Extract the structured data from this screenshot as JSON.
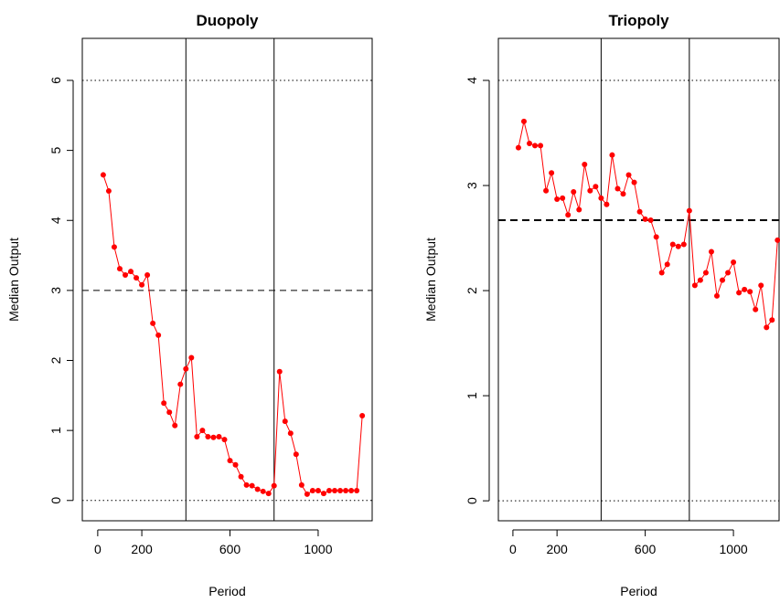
{
  "chart_data": [
    {
      "type": "line",
      "title": "Duopoly",
      "x_label": "Period",
      "y_label": "Median Output",
      "x": [
        25,
        50,
        75,
        100,
        125,
        150,
        175,
        200,
        225,
        250,
        275,
        300,
        325,
        350,
        375,
        400,
        425,
        450,
        475,
        500,
        525,
        550,
        575,
        600,
        625,
        650,
        675,
        700,
        725,
        750,
        775,
        800,
        825,
        850,
        875,
        900,
        925,
        950,
        975,
        1000,
        1025,
        1050,
        1075,
        1100,
        1125,
        1150,
        1175,
        1200
      ],
      "series": [
        {
          "color": "#ff0000",
          "values": [
            4.65,
            4.42,
            3.62,
            3.31,
            3.22,
            3.27,
            3.18,
            3.08,
            3.22,
            2.53,
            2.36,
            1.39,
            1.26,
            1.07,
            1.66,
            1.88,
            2.04,
            0.91,
            1.0,
            0.91,
            0.9,
            0.91,
            0.87,
            0.57,
            0.51,
            0.34,
            0.22,
            0.21,
            0.16,
            0.13,
            0.1,
            0.21,
            1.84,
            1.13,
            0.96,
            0.66,
            0.22,
            0.09,
            0.14,
            0.14,
            0.1,
            0.14,
            0.14,
            0.14,
            0.14,
            0.14,
            0.14,
            1.21
          ]
        }
      ],
      "xlim": [
        -70,
        1245
      ],
      "ylim": [
        -0.29,
        6.6
      ],
      "xticks": [
        0,
        200,
        600,
        1000
      ],
      "yticks": [
        0,
        1,
        2,
        3,
        4,
        5,
        6
      ],
      "hlines": [
        {
          "value": 0,
          "style": "dotted"
        },
        {
          "value": 6,
          "style": "dotted"
        },
        {
          "value": 3,
          "style": "dashed"
        }
      ],
      "vlines": [
        400,
        800
      ]
    },
    {
      "type": "line",
      "title": "Triopoly",
      "x_label": "Period",
      "y_label": "Median Output",
      "x": [
        25,
        50,
        75,
        100,
        125,
        150,
        175,
        200,
        225,
        250,
        275,
        300,
        325,
        350,
        375,
        400,
        425,
        450,
        475,
        500,
        525,
        550,
        575,
        600,
        625,
        650,
        675,
        700,
        725,
        750,
        775,
        800,
        825,
        850,
        875,
        900,
        925,
        950,
        975,
        1000,
        1025,
        1050,
        1075,
        1100,
        1125,
        1150,
        1175,
        1200
      ],
      "series": [
        {
          "color": "#ff0000",
          "values": [
            3.36,
            3.61,
            3.4,
            3.38,
            3.38,
            2.95,
            3.12,
            2.87,
            2.88,
            2.72,
            2.94,
            2.77,
            3.2,
            2.95,
            2.99,
            2.88,
            2.82,
            3.29,
            2.97,
            2.92,
            3.1,
            3.03,
            2.75,
            2.68,
            2.67,
            2.51,
            2.17,
            2.25,
            2.44,
            2.42,
            2.44,
            2.76,
            2.05,
            2.1,
            2.17,
            2.37,
            1.95,
            2.1,
            2.17,
            2.27,
            1.98,
            2.01,
            1.99,
            1.82,
            2.05,
            1.65,
            1.72,
            2.48
          ]
        }
      ],
      "xlim": [
        -66,
        1207
      ],
      "ylim": [
        -0.19,
        4.4
      ],
      "xticks": [
        0,
        200,
        600,
        1000
      ],
      "yticks": [
        0,
        1,
        2,
        3,
        4
      ],
      "hlines": [
        {
          "value": 0,
          "style": "dotted"
        },
        {
          "value": 4,
          "style": "dotted"
        },
        {
          "value": 2.67,
          "style": "bold-dashed"
        }
      ],
      "vlines": [
        400,
        800
      ]
    }
  ]
}
